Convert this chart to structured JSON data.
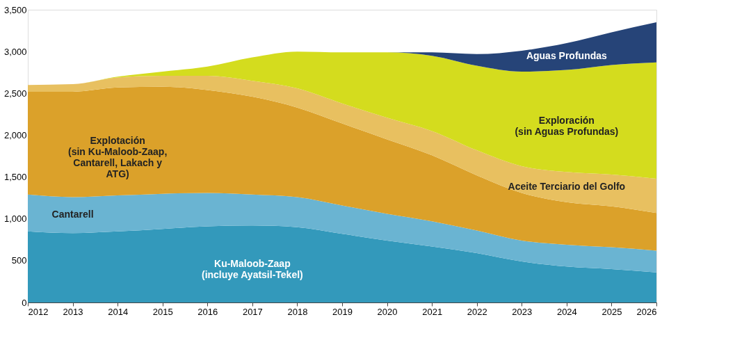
{
  "chart_data": {
    "type": "area",
    "stacked": true,
    "x": [
      2012,
      2013,
      2014,
      2015,
      2016,
      2017,
      2018,
      2019,
      2020,
      2021,
      2022,
      2023,
      2024,
      2025,
      2026
    ],
    "series": [
      {
        "name": "Ku-Maloob-Zaap\n(incluye Ayatsil-Tekel)",
        "color": "#3399bb",
        "values": [
          850,
          830,
          850,
          880,
          910,
          920,
          900,
          820,
          740,
          670,
          590,
          490,
          430,
          400,
          360
        ]
      },
      {
        "name": "Cantarell",
        "color": "#6ab4d2",
        "values": [
          440,
          430,
          430,
          420,
          400,
          370,
          360,
          340,
          320,
          300,
          270,
          250,
          260,
          260,
          260
        ]
      },
      {
        "name": "Explotación\n(sin Ku-Maloob-Zaap,\nCantarell, Lakach y\nATG)",
        "color": "#dba12a",
        "values": [
          1230,
          1260,
          1290,
          1280,
          1230,
          1170,
          1070,
          980,
          890,
          790,
          660,
          570,
          510,
          490,
          450
        ]
      },
      {
        "name": "Aceite Terciario del Golfo",
        "color": "#e8c060",
        "values": [
          80,
          90,
          120,
          130,
          170,
          190,
          230,
          240,
          260,
          290,
          300,
          320,
          360,
          380,
          410
        ]
      },
      {
        "name": "Exploración\n(sin Aguas Profundas)",
        "color": "#d4dc1e",
        "values": [
          0,
          0,
          10,
          50,
          110,
          280,
          440,
          610,
          780,
          900,
          1010,
          1130,
          1220,
          1310,
          1390
        ]
      },
      {
        "name": "Aguas Profundas",
        "color": "#264478",
        "values": [
          0,
          0,
          0,
          0,
          0,
          0,
          0,
          0,
          0,
          40,
          140,
          250,
          320,
          390,
          480
        ]
      }
    ],
    "xlim": [
      2012,
      2026
    ],
    "xticks": [
      2012,
      2013,
      2014,
      2015,
      2016,
      2017,
      2018,
      2019,
      2020,
      2021,
      2022,
      2023,
      2024,
      2025,
      2026
    ],
    "ylim": [
      0,
      3500
    ],
    "yticks": [
      0,
      500,
      {
        "value": 1000,
        "label": "1,000"
      },
      {
        "value": 1500,
        "label": "1,500"
      },
      {
        "value": 2000,
        "label": "2,000"
      },
      {
        "value": 2500,
        "label": "2,500"
      },
      {
        "value": 3000,
        "label": "3,000"
      },
      {
        "value": 3500,
        "label": "3,500"
      }
    ],
    "grid": false,
    "legend": false
  }
}
